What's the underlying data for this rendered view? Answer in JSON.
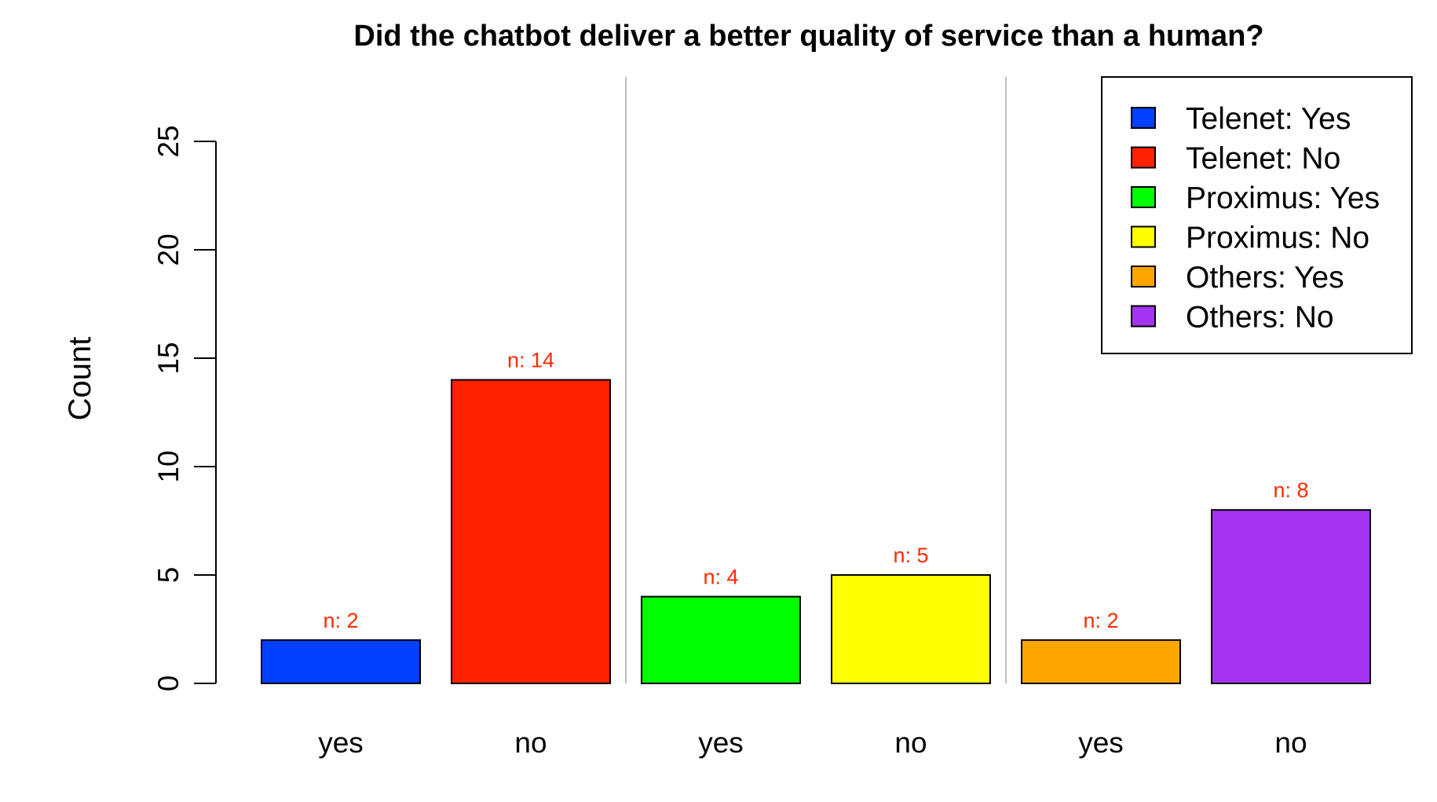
{
  "chart_data": {
    "type": "bar",
    "title": "Did the chatbot deliver a better quality of service than a human?",
    "xlabel": "",
    "ylabel": "Count",
    "ylim": [
      0,
      25
    ],
    "yticks": [
      "0",
      "5",
      "10",
      "15",
      "20",
      "25"
    ],
    "categories": [
      "yes",
      "no",
      "yes",
      "no",
      "yes",
      "no"
    ],
    "values": [
      2,
      14,
      4,
      5,
      2,
      8
    ],
    "data_labels": [
      "n: 2",
      "n: 14",
      "n: 4",
      "n: 5",
      "n: 2",
      "n: 8"
    ],
    "colors": [
      "#0040ff",
      "#ff2200",
      "#00ff00",
      "#ffff00",
      "#ffa500",
      "#a335f0"
    ],
    "groups": [
      {
        "name": "Telenet",
        "bars": [
          0,
          1
        ]
      },
      {
        "name": "Proximus",
        "bars": [
          2,
          3
        ]
      },
      {
        "name": "Others",
        "bars": [
          4,
          5
        ]
      }
    ],
    "group_separators": true,
    "data_label_color": "#ff2a00",
    "grid": false,
    "legend": {
      "position": "top-right",
      "entries": [
        {
          "label": "Telenet: Yes",
          "color": "#0040ff"
        },
        {
          "label": "Telenet: No",
          "color": "#ff2200"
        },
        {
          "label": "Proximus: Yes",
          "color": "#00ff00"
        },
        {
          "label": "Proximus: No",
          "color": "#ffff00"
        },
        {
          "label": "Others: Yes",
          "color": "#ffa500"
        },
        {
          "label": "Others: No",
          "color": "#a335f0"
        }
      ]
    }
  }
}
